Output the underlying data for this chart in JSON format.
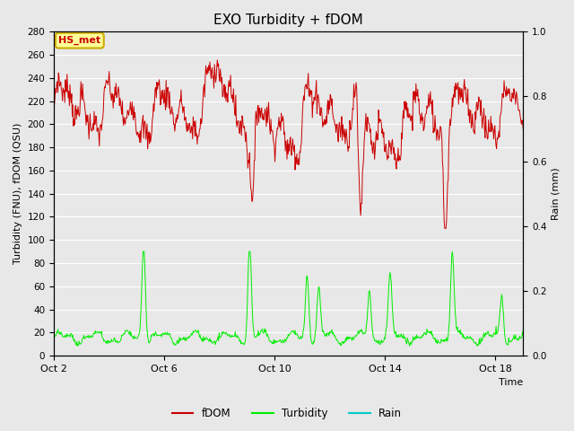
{
  "title": "EXO Turbidity + fDOM",
  "xlabel": "Time",
  "ylabel_left": "Turbidity (FNU), fDOM (QSU)",
  "ylabel_right": "Rain (mm)",
  "ylim_left": [
    0,
    280
  ],
  "ylim_right": [
    0,
    1.0
  ],
  "yticks_left": [
    0,
    20,
    40,
    60,
    80,
    100,
    120,
    140,
    160,
    180,
    200,
    220,
    240,
    260,
    280
  ],
  "yticks_right": [
    0.0,
    0.2,
    0.4,
    0.6,
    0.8,
    1.0
  ],
  "xtick_labels": [
    "Oct 2",
    "Oct 6",
    "Oct 10",
    "Oct 14",
    "Oct 18"
  ],
  "xtick_positions": [
    0,
    4,
    8,
    12,
    16
  ],
  "xlim": [
    0,
    17
  ],
  "bg_color": "#e8e8e8",
  "plot_bg_color": "#e8e8e8",
  "grid_color": "#ffffff",
  "fdom_color": "#cc0000",
  "turbidity_color": "#00ee00",
  "rain_color": "#00cccc",
  "legend_label_fdom": "fDOM",
  "legend_label_turbidity": "Turbidity",
  "legend_label_rain": "Rain",
  "annotation_text": "HS_met",
  "annotation_bg": "#ffff99",
  "annotation_border": "#ccaa00",
  "figsize": [
    6.4,
    4.8
  ],
  "dpi": 100
}
